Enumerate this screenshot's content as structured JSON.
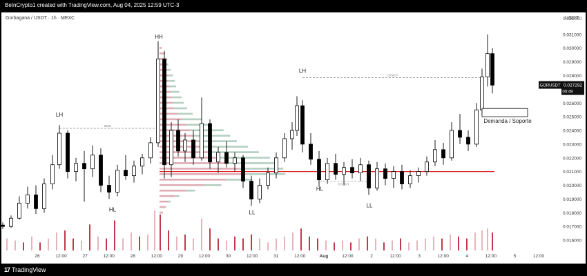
{
  "header": {
    "caption": "BeInCrypto1 created with TradingView.com, Aug 04, 2025 12:59 UTC-3"
  },
  "footer": {
    "logo_mark": "17",
    "logo_text": "TradingView"
  },
  "chart_data": {
    "type": "candlestick",
    "symbol_line": "Gorbagana / USDT · 1h · MEXC",
    "currency": "USDT",
    "ylim": [
      0.0155,
      0.0322
    ],
    "y_ticks": [
      "0.031000",
      "0.030000",
      "0.029000",
      "0.028000",
      "0.027000",
      "0.026000",
      "0.025000",
      "0.024000",
      "0.023000",
      "0.022000",
      "0.021000",
      "0.020000",
      "0.019000",
      "0.018000",
      "0.017000",
      "0.016000"
    ],
    "y_top_partial": "0.032000",
    "x_ticks": [
      "26",
      "12:00",
      "27",
      "12:00",
      "28",
      "12:00",
      "29",
      "12:00",
      "30",
      "12:00",
      "31",
      "12:00",
      "Aug",
      "12:00",
      "2",
      "12:00",
      "3",
      "12:00",
      "4",
      "12:00",
      "5",
      "12:00"
    ],
    "last_price_label": {
      "ticker": "GORUSDT",
      "price": "0.027292",
      "countdown": "00:49",
      "value": 0.027292
    },
    "support_level": 0.021,
    "colors": {
      "up": "#ffffff",
      "down": "#000000",
      "support_line": "#e02020",
      "vol_up": "#e8b4bc",
      "vol_down": "#c0394b",
      "vp_red": "#d9a0a8",
      "vp_green": "#a9c8b8"
    },
    "annotations": [
      {
        "text": "LH",
        "x": 84,
        "y": 0.025
      },
      {
        "text": "HH",
        "x": 228,
        "y": 0.0307
      },
      {
        "text": "HL",
        "x": 161,
        "y": 0.0181
      },
      {
        "text": "LL",
        "x": 363,
        "y": 0.0179
      },
      {
        "text": "LH",
        "x": 436,
        "y": 0.0282
      },
      {
        "text": "HL",
        "x": 461,
        "y": 0.0196
      },
      {
        "text": "LL",
        "x": 533,
        "y": 0.0184
      }
    ],
    "small_labels": [
      {
        "text": "BOS",
        "x": 154,
        "y": 0.02415
      },
      {
        "text": "CHoCH",
        "x": 567,
        "y": 0.02785
      },
      {
        "text": "CHoCH",
        "x": 495,
        "y": 0.0199
      }
    ],
    "demand_zone": {
      "label": "Demanda / Soporte",
      "low": 0.025,
      "high": 0.0256
    },
    "series": [
      {
        "x": 2,
        "o": 0.0171,
        "h": 0.0173,
        "l": 0.0168,
        "c": 0.017
      },
      {
        "x": 14,
        "o": 0.017,
        "h": 0.0178,
        "l": 0.0169,
        "c": 0.0176
      },
      {
        "x": 26,
        "o": 0.0176,
        "h": 0.0192,
        "l": 0.0175,
        "c": 0.0187
      },
      {
        "x": 38,
        "o": 0.0187,
        "h": 0.0199,
        "l": 0.0183,
        "c": 0.0193
      },
      {
        "x": 50,
        "o": 0.0193,
        "h": 0.02,
        "l": 0.0179,
        "c": 0.0183
      },
      {
        "x": 62,
        "o": 0.0183,
        "h": 0.0205,
        "l": 0.018,
        "c": 0.0201
      },
      {
        "x": 74,
        "o": 0.0201,
        "h": 0.0222,
        "l": 0.0197,
        "c": 0.0215
      },
      {
        "x": 84,
        "o": 0.0215,
        "h": 0.0244,
        "l": 0.0212,
        "c": 0.0238
      },
      {
        "x": 96,
        "o": 0.0238,
        "h": 0.024,
        "l": 0.0205,
        "c": 0.021
      },
      {
        "x": 108,
        "o": 0.021,
        "h": 0.022,
        "l": 0.0203,
        "c": 0.0216
      },
      {
        "x": 120,
        "o": 0.0216,
        "h": 0.0225,
        "l": 0.0188,
        "c": 0.0212
      },
      {
        "x": 132,
        "o": 0.0212,
        "h": 0.0229,
        "l": 0.0206,
        "c": 0.0222
      },
      {
        "x": 144,
        "o": 0.0222,
        "h": 0.0227,
        "l": 0.0195,
        "c": 0.02
      },
      {
        "x": 156,
        "o": 0.02,
        "h": 0.0207,
        "l": 0.019,
        "c": 0.0195
      },
      {
        "x": 168,
        "o": 0.0195,
        "h": 0.0215,
        "l": 0.0192,
        "c": 0.0211
      },
      {
        "x": 180,
        "o": 0.0211,
        "h": 0.0222,
        "l": 0.0204,
        "c": 0.0207
      },
      {
        "x": 192,
        "o": 0.0207,
        "h": 0.0218,
        "l": 0.0202,
        "c": 0.0214
      },
      {
        "x": 204,
        "o": 0.0214,
        "h": 0.0223,
        "l": 0.0208,
        "c": 0.022
      },
      {
        "x": 216,
        "o": 0.022,
        "h": 0.0235,
        "l": 0.0216,
        "c": 0.0231
      },
      {
        "x": 227,
        "o": 0.0231,
        "h": 0.0305,
        "l": 0.0228,
        "c": 0.0292
      },
      {
        "x": 236,
        "o": 0.0292,
        "h": 0.0298,
        "l": 0.0205,
        "c": 0.0215
      },
      {
        "x": 246,
        "o": 0.0215,
        "h": 0.0246,
        "l": 0.0206,
        "c": 0.024
      },
      {
        "x": 256,
        "o": 0.024,
        "h": 0.0248,
        "l": 0.0221,
        "c": 0.0225
      },
      {
        "x": 266,
        "o": 0.0225,
        "h": 0.0238,
        "l": 0.0217,
        "c": 0.0233
      },
      {
        "x": 278,
        "o": 0.0233,
        "h": 0.024,
        "l": 0.0215,
        "c": 0.022
      },
      {
        "x": 290,
        "o": 0.022,
        "h": 0.0264,
        "l": 0.0218,
        "c": 0.0245
      },
      {
        "x": 302,
        "o": 0.0245,
        "h": 0.0248,
        "l": 0.0212,
        "c": 0.0217
      },
      {
        "x": 314,
        "o": 0.0217,
        "h": 0.0228,
        "l": 0.0209,
        "c": 0.0224
      },
      {
        "x": 326,
        "o": 0.0224,
        "h": 0.0232,
        "l": 0.0213,
        "c": 0.0216
      },
      {
        "x": 338,
        "o": 0.0216,
        "h": 0.0224,
        "l": 0.021,
        "c": 0.022
      },
      {
        "x": 350,
        "o": 0.022,
        "h": 0.0222,
        "l": 0.0198,
        "c": 0.0203
      },
      {
        "x": 362,
        "o": 0.0203,
        "h": 0.0207,
        "l": 0.0185,
        "c": 0.019
      },
      {
        "x": 374,
        "o": 0.019,
        "h": 0.0205,
        "l": 0.0187,
        "c": 0.02
      },
      {
        "x": 386,
        "o": 0.02,
        "h": 0.0213,
        "l": 0.0197,
        "c": 0.0209
      },
      {
        "x": 398,
        "o": 0.0209,
        "h": 0.0224,
        "l": 0.0205,
        "c": 0.022
      },
      {
        "x": 410,
        "o": 0.022,
        "h": 0.0238,
        "l": 0.0217,
        "c": 0.0234
      },
      {
        "x": 421,
        "o": 0.0234,
        "h": 0.0246,
        "l": 0.0226,
        "c": 0.024
      },
      {
        "x": 428,
        "o": 0.024,
        "h": 0.0265,
        "l": 0.0236,
        "c": 0.0258
      },
      {
        "x": 436,
        "o": 0.0258,
        "h": 0.0262,
        "l": 0.0224,
        "c": 0.023
      },
      {
        "x": 448,
        "o": 0.023,
        "h": 0.0238,
        "l": 0.0215,
        "c": 0.0219
      },
      {
        "x": 460,
        "o": 0.0219,
        "h": 0.0225,
        "l": 0.0199,
        "c": 0.0204
      },
      {
        "x": 472,
        "o": 0.0204,
        "h": 0.022,
        "l": 0.0201,
        "c": 0.0216
      },
      {
        "x": 484,
        "o": 0.0216,
        "h": 0.0223,
        "l": 0.0204,
        "c": 0.0208
      },
      {
        "x": 496,
        "o": 0.0208,
        "h": 0.0217,
        "l": 0.02,
        "c": 0.0213
      },
      {
        "x": 508,
        "o": 0.0213,
        "h": 0.0219,
        "l": 0.0205,
        "c": 0.0209
      },
      {
        "x": 520,
        "o": 0.0209,
        "h": 0.022,
        "l": 0.0203,
        "c": 0.0215
      },
      {
        "x": 532,
        "o": 0.0215,
        "h": 0.0218,
        "l": 0.0193,
        "c": 0.0198
      },
      {
        "x": 544,
        "o": 0.0198,
        "h": 0.0217,
        "l": 0.0196,
        "c": 0.0212
      },
      {
        "x": 556,
        "o": 0.0212,
        "h": 0.0216,
        "l": 0.02,
        "c": 0.0205
      },
      {
        "x": 568,
        "o": 0.0205,
        "h": 0.0214,
        "l": 0.0198,
        "c": 0.021
      },
      {
        "x": 580,
        "o": 0.021,
        "h": 0.0215,
        "l": 0.0197,
        "c": 0.0201
      },
      {
        "x": 592,
        "o": 0.0201,
        "h": 0.0211,
        "l": 0.0198,
        "c": 0.0207
      },
      {
        "x": 604,
        "o": 0.0207,
        "h": 0.0213,
        "l": 0.0202,
        "c": 0.021
      },
      {
        "x": 616,
        "o": 0.021,
        "h": 0.0221,
        "l": 0.0207,
        "c": 0.0217
      },
      {
        "x": 628,
        "o": 0.0217,
        "h": 0.0233,
        "l": 0.0214,
        "c": 0.0226
      },
      {
        "x": 640,
        "o": 0.0226,
        "h": 0.0231,
        "l": 0.0215,
        "c": 0.022
      },
      {
        "x": 652,
        "o": 0.022,
        "h": 0.0246,
        "l": 0.0218,
        "c": 0.024
      },
      {
        "x": 664,
        "o": 0.024,
        "h": 0.0252,
        "l": 0.023,
        "c": 0.0235
      },
      {
        "x": 676,
        "o": 0.0235,
        "h": 0.024,
        "l": 0.0225,
        "c": 0.023
      },
      {
        "x": 688,
        "o": 0.023,
        "h": 0.026,
        "l": 0.0228,
        "c": 0.0255
      },
      {
        "x": 696,
        "o": 0.0255,
        "h": 0.0285,
        "l": 0.0252,
        "c": 0.0279
      },
      {
        "x": 704,
        "o": 0.0279,
        "h": 0.031,
        "l": 0.0272,
        "c": 0.0296
      },
      {
        "x": 711,
        "o": 0.0296,
        "h": 0.03,
        "l": 0.0267,
        "c": 0.0273
      }
    ],
    "volume": [
      {
        "x": 8,
        "v": 0.3,
        "up": true
      },
      {
        "x": 20,
        "v": 0.25,
        "up": true
      },
      {
        "x": 32,
        "v": 0.2,
        "up": false
      },
      {
        "x": 44,
        "v": 0.35,
        "up": true
      },
      {
        "x": 56,
        "v": 0.2,
        "up": false
      },
      {
        "x": 68,
        "v": 0.3,
        "up": true
      },
      {
        "x": 80,
        "v": 0.45,
        "up": true
      },
      {
        "x": 92,
        "v": 0.5,
        "up": false
      },
      {
        "x": 104,
        "v": 0.3,
        "up": false
      },
      {
        "x": 116,
        "v": 0.25,
        "up": true
      },
      {
        "x": 128,
        "v": 0.65,
        "up": false
      },
      {
        "x": 140,
        "v": 0.35,
        "up": true
      },
      {
        "x": 152,
        "v": 0.3,
        "up": false
      },
      {
        "x": 164,
        "v": 0.75,
        "up": false
      },
      {
        "x": 176,
        "v": 0.3,
        "up": true
      },
      {
        "x": 188,
        "v": 0.45,
        "up": true
      },
      {
        "x": 200,
        "v": 0.35,
        "up": false
      },
      {
        "x": 212,
        "v": 0.4,
        "up": true
      },
      {
        "x": 222,
        "v": 1.0,
        "up": true
      },
      {
        "x": 230,
        "v": 0.9,
        "up": false
      },
      {
        "x": 242,
        "v": 0.5,
        "up": false
      },
      {
        "x": 254,
        "v": 0.35,
        "up": true
      },
      {
        "x": 266,
        "v": 0.4,
        "up": false
      },
      {
        "x": 278,
        "v": 0.3,
        "up": true
      },
      {
        "x": 290,
        "v": 0.8,
        "up": true
      },
      {
        "x": 302,
        "v": 0.55,
        "up": false
      },
      {
        "x": 314,
        "v": 0.3,
        "up": false
      },
      {
        "x": 326,
        "v": 0.25,
        "up": true
      },
      {
        "x": 338,
        "v": 0.35,
        "up": false
      },
      {
        "x": 350,
        "v": 0.3,
        "up": false
      },
      {
        "x": 362,
        "v": 0.4,
        "up": false
      },
      {
        "x": 374,
        "v": 0.3,
        "up": true
      },
      {
        "x": 386,
        "v": 0.2,
        "up": true
      },
      {
        "x": 398,
        "v": 0.3,
        "up": true
      },
      {
        "x": 410,
        "v": 0.35,
        "up": true
      },
      {
        "x": 422,
        "v": 0.45,
        "up": true
      },
      {
        "x": 434,
        "v": 0.55,
        "up": false
      },
      {
        "x": 446,
        "v": 0.35,
        "up": false
      },
      {
        "x": 458,
        "v": 0.3,
        "up": false
      },
      {
        "x": 470,
        "v": 0.25,
        "up": true
      },
      {
        "x": 482,
        "v": 0.2,
        "up": false
      },
      {
        "x": 494,
        "v": 0.25,
        "up": true
      },
      {
        "x": 506,
        "v": 0.2,
        "up": false
      },
      {
        "x": 518,
        "v": 0.3,
        "up": true
      },
      {
        "x": 530,
        "v": 0.35,
        "up": false
      },
      {
        "x": 542,
        "v": 0.3,
        "up": true
      },
      {
        "x": 554,
        "v": 0.2,
        "up": false
      },
      {
        "x": 566,
        "v": 0.25,
        "up": true
      },
      {
        "x": 578,
        "v": 0.3,
        "up": false
      },
      {
        "x": 590,
        "v": 0.2,
        "up": true
      },
      {
        "x": 602,
        "v": 0.25,
        "up": true
      },
      {
        "x": 614,
        "v": 0.3,
        "up": true
      },
      {
        "x": 626,
        "v": 0.35,
        "up": true
      },
      {
        "x": 638,
        "v": 0.3,
        "up": false
      },
      {
        "x": 650,
        "v": 0.4,
        "up": true
      },
      {
        "x": 662,
        "v": 0.35,
        "up": false
      },
      {
        "x": 674,
        "v": 0.3,
        "up": false
      },
      {
        "x": 686,
        "v": 0.45,
        "up": true
      },
      {
        "x": 696,
        "v": 0.5,
        "up": true
      },
      {
        "x": 704,
        "v": 0.55,
        "up": true
      },
      {
        "x": 711,
        "v": 0.45,
        "up": false
      }
    ],
    "volume_profile": [
      {
        "p": 0.03,
        "r": 2,
        "g": 0
      },
      {
        "p": 0.0296,
        "r": 4,
        "g": 1
      },
      {
        "p": 0.0292,
        "r": 5,
        "g": 2
      },
      {
        "p": 0.0288,
        "r": 6,
        "g": 2
      },
      {
        "p": 0.0284,
        "r": 7,
        "g": 3
      },
      {
        "p": 0.028,
        "r": 8,
        "g": 4
      },
      {
        "p": 0.0276,
        "r": 8,
        "g": 6
      },
      {
        "p": 0.0272,
        "r": 9,
        "g": 6
      },
      {
        "p": 0.0268,
        "r": 10,
        "g": 8
      },
      {
        "p": 0.0264,
        "r": 11,
        "g": 9
      },
      {
        "p": 0.026,
        "r": 12,
        "g": 10
      },
      {
        "p": 0.0256,
        "r": 13,
        "g": 12
      },
      {
        "p": 0.0252,
        "r": 16,
        "g": 14
      },
      {
        "p": 0.0248,
        "r": 20,
        "g": 18
      },
      {
        "p": 0.0244,
        "r": 24,
        "g": 22
      },
      {
        "p": 0.024,
        "r": 28,
        "g": 30
      },
      {
        "p": 0.0236,
        "r": 30,
        "g": 34
      },
      {
        "p": 0.0232,
        "r": 34,
        "g": 36
      },
      {
        "p": 0.0228,
        "r": 40,
        "g": 40
      },
      {
        "p": 0.0224,
        "r": 44,
        "g": 46
      },
      {
        "p": 0.022,
        "r": 52,
        "g": 48
      },
      {
        "p": 0.0216,
        "r": 62,
        "g": 44
      },
      {
        "p": 0.0212,
        "r": 72,
        "g": 40
      },
      {
        "p": 0.0208,
        "r": 78,
        "g": 36
      },
      {
        "p": 0.0204,
        "r": 60,
        "g": 24
      },
      {
        "p": 0.02,
        "r": 40,
        "g": 16
      },
      {
        "p": 0.0196,
        "r": 24,
        "g": 8
      },
      {
        "p": 0.0192,
        "r": 14,
        "g": 4
      },
      {
        "p": 0.0188,
        "r": 8,
        "g": 2
      },
      {
        "p": 0.0184,
        "r": 5,
        "g": 1
      },
      {
        "p": 0.018,
        "r": 3,
        "g": 0
      }
    ]
  }
}
